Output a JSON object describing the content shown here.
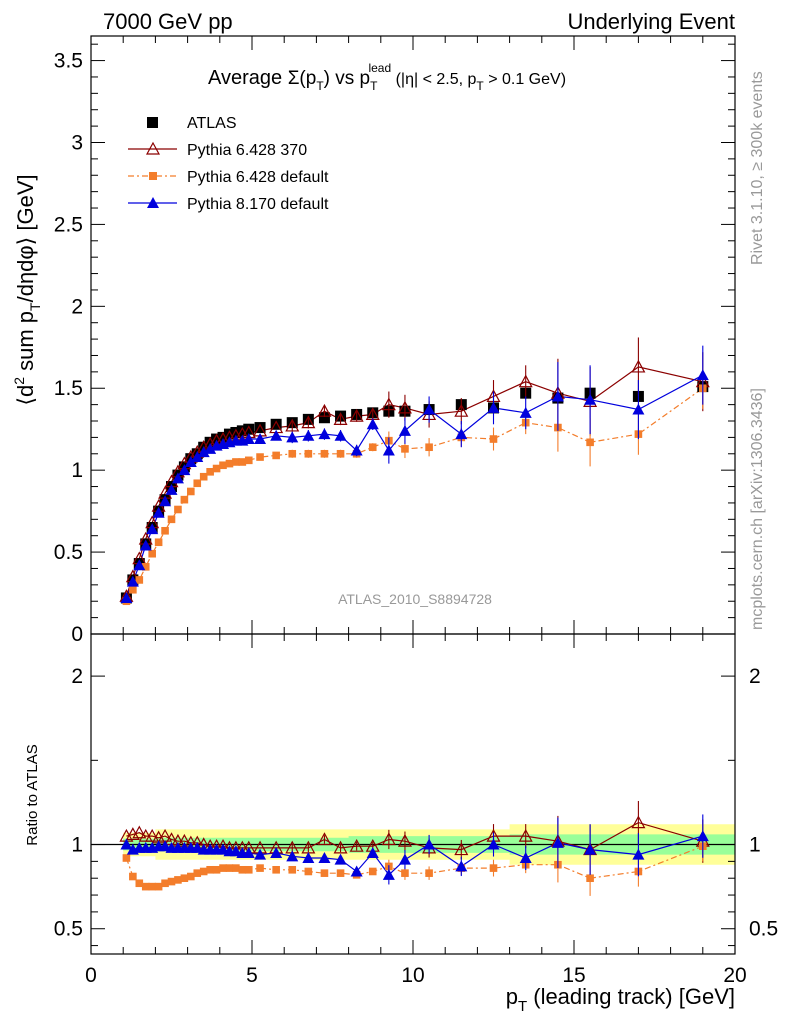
{
  "header": {
    "left": "7000 GeV pp",
    "right": "Underlying Event"
  },
  "side": {
    "rivet": "Rivet 3.1.10, ≥ 300k events",
    "mcplots": "mcplots.cern.ch [arXiv:1306.3436]"
  },
  "analysis_tag": "ATLAS_2010_S8894728",
  "colors": {
    "atlas": "#000000",
    "py6_370": "#8b0000",
    "py6_default": "#f37d2b",
    "py8": "#0000dd",
    "band_outer": "#ffff99",
    "band_inner": "#99ff99"
  },
  "chart_data": [
    {
      "type": "line",
      "title_parts": [
        "Average ",
        "Σ(p",
        "T",
        ") vs p",
        "T",
        "lead",
        " (|η| < 2.5, p",
        "T",
        " > 0.1 GeV)"
      ],
      "ylabel_parts": [
        "⟨d",
        "2",
        " sum p",
        "T",
        "/dηdφ⟩ [GeV]"
      ],
      "xlim": [
        0,
        20
      ],
      "ylim": [
        0,
        3.65
      ],
      "yticks": [
        "0",
        "0.5",
        "1",
        "1.5",
        "2",
        "2.5",
        "3",
        "3.5"
      ],
      "legend": [
        "ATLAS",
        "Pythia 6.428 370",
        "Pythia 6.428 default",
        "Pythia 8.170 default"
      ],
      "x": [
        1.1,
        1.3,
        1.5,
        1.7,
        1.9,
        2.1,
        2.3,
        2.5,
        2.7,
        2.9,
        3.1,
        3.3,
        3.5,
        3.7,
        3.9,
        4.1,
        4.3,
        4.5,
        4.7,
        4.9,
        5.25,
        5.75,
        6.25,
        6.75,
        7.25,
        7.75,
        8.25,
        8.75,
        9.25,
        9.75,
        10.5,
        11.5,
        12.5,
        13.5,
        14.5,
        15.5,
        17,
        19
      ],
      "series": [
        {
          "name": "ATLAS",
          "values": [
            0.22,
            0.33,
            0.43,
            0.55,
            0.65,
            0.75,
            0.82,
            0.9,
            0.97,
            1.02,
            1.07,
            1.1,
            1.14,
            1.17,
            1.19,
            1.2,
            1.22,
            1.23,
            1.24,
            1.25,
            1.26,
            1.28,
            1.29,
            1.31,
            1.32,
            1.33,
            1.34,
            1.35,
            1.36,
            1.36,
            1.37,
            1.4,
            1.38,
            1.47,
            1.44,
            1.47,
            1.45,
            1.51
          ]
        },
        {
          "name": "Pythia 6.428 370",
          "values": [
            0.23,
            0.35,
            0.46,
            0.58,
            0.68,
            0.78,
            0.86,
            0.93,
            0.99,
            1.04,
            1.08,
            1.11,
            1.14,
            1.16,
            1.18,
            1.19,
            1.2,
            1.21,
            1.22,
            1.23,
            1.24,
            1.26,
            1.27,
            1.29,
            1.36,
            1.31,
            1.33,
            1.34,
            1.4,
            1.38,
            1.34,
            1.36,
            1.45,
            1.54,
            1.47,
            1.42,
            1.63,
            1.54
          ]
        },
        {
          "name": "Pythia 6.428 default",
          "values": [
            0.2,
            0.27,
            0.33,
            0.41,
            0.49,
            0.56,
            0.63,
            0.7,
            0.76,
            0.82,
            0.87,
            0.92,
            0.96,
            0.99,
            1.01,
            1.03,
            1.04,
            1.05,
            1.05,
            1.06,
            1.08,
            1.09,
            1.1,
            1.1,
            1.1,
            1.1,
            1.1,
            1.14,
            1.18,
            1.13,
            1.14,
            1.2,
            1.19,
            1.29,
            1.26,
            1.17,
            1.22,
            1.5
          ]
        },
        {
          "name": "Pythia 8.170 default",
          "values": [
            0.22,
            0.32,
            0.42,
            0.54,
            0.64,
            0.74,
            0.81,
            0.88,
            0.95,
            1.0,
            1.05,
            1.08,
            1.11,
            1.13,
            1.15,
            1.16,
            1.17,
            1.18,
            1.18,
            1.19,
            1.19,
            1.21,
            1.2,
            1.21,
            1.22,
            1.21,
            1.12,
            1.28,
            1.12,
            1.24,
            1.37,
            1.22,
            1.38,
            1.35,
            1.45,
            1.43,
            1.37,
            1.58
          ]
        }
      ]
    },
    {
      "type": "line",
      "ylabel": "Ratio to ATLAS",
      "xlabel_parts": [
        "p",
        "T",
        " (leading track) [GeV]"
      ],
      "xlim": [
        0,
        20
      ],
      "ylim": [
        0.35,
        2.25
      ],
      "xticks": [
        "0",
        "5",
        "10",
        "15",
        "20"
      ],
      "yticks": [
        "0.5",
        "1",
        "2"
      ],
      "reference": 1,
      "series_ratio": [
        {
          "name": "Pythia 6.428 370",
          "values": [
            1.05,
            1.06,
            1.07,
            1.05,
            1.05,
            1.04,
            1.05,
            1.03,
            1.02,
            1.02,
            1.01,
            1.01,
            1.0,
            0.99,
            0.99,
            0.99,
            0.98,
            0.98,
            0.98,
            0.98,
            0.98,
            0.98,
            0.98,
            0.98,
            1.03,
            0.98,
            0.99,
            0.99,
            1.03,
            1.02,
            0.98,
            0.97,
            1.05,
            1.05,
            1.02,
            0.97,
            1.13,
            1.02
          ]
        },
        {
          "name": "Pythia 6.428 default",
          "values": [
            0.92,
            0.81,
            0.77,
            0.75,
            0.75,
            0.75,
            0.77,
            0.78,
            0.79,
            0.8,
            0.81,
            0.83,
            0.84,
            0.85,
            0.85,
            0.86,
            0.86,
            0.86,
            0.85,
            0.85,
            0.86,
            0.85,
            0.85,
            0.84,
            0.83,
            0.83,
            0.82,
            0.84,
            0.87,
            0.83,
            0.83,
            0.86,
            0.86,
            0.88,
            0.88,
            0.8,
            0.84,
            0.99
          ]
        },
        {
          "name": "Pythia 8.170 default",
          "values": [
            1.0,
            0.97,
            0.98,
            0.98,
            0.98,
            0.99,
            0.99,
            0.98,
            0.98,
            0.98,
            0.98,
            0.98,
            0.97,
            0.97,
            0.97,
            0.97,
            0.96,
            0.96,
            0.95,
            0.95,
            0.94,
            0.95,
            0.93,
            0.92,
            0.92,
            0.91,
            0.84,
            0.95,
            0.82,
            0.91,
            1.0,
            0.87,
            1.0,
            0.92,
            1.01,
            0.97,
            0.94,
            1.05
          ]
        }
      ]
    }
  ]
}
